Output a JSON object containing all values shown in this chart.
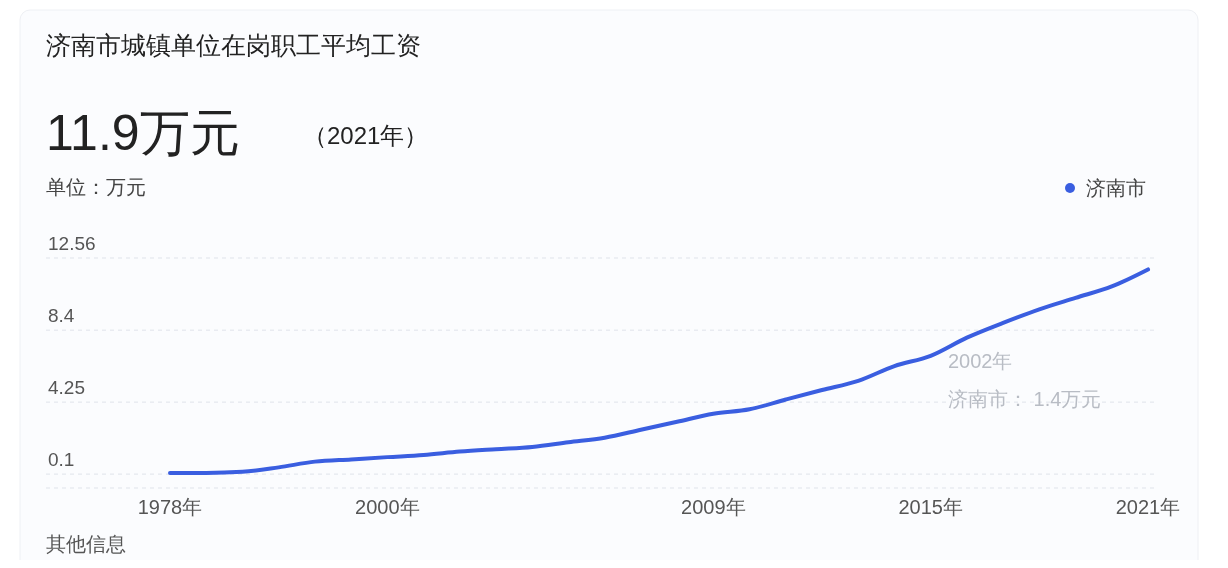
{
  "chart_data": {
    "type": "line",
    "title": "济南市城镇单位在岗职工平均工资",
    "subtitle": "11.9万元",
    "ylabel": "单位：万元",
    "annotations": [
      "（2021年）",
      "2002年",
      "济南市： 1.4万元",
      "其他信息"
    ],
    "categories": [
      "1978年",
      null,
      null,
      null,
      null,
      null,
      "2000年",
      null,
      null,
      null,
      null,
      null,
      null,
      null,
      null,
      "2009年",
      null,
      null,
      null,
      null,
      null,
      "2015年",
      null,
      null,
      null,
      null,
      null,
      "2021年"
    ],
    "series": [
      {
        "name": "济南市",
        "color": "#3a5ee0",
        "values": [
          0.17,
          0.17,
          0.23,
          0.49,
          0.82,
          0.95,
          1.08,
          1.2,
          1.4,
          1.54,
          1.67,
          1.94,
          2.2,
          2.66,
          3.12,
          3.58,
          3.84,
          4.4,
          4.95,
          5.48,
          6.33,
          6.92,
          7.97,
          8.82,
          9.6,
          10.26,
          10.92,
          11.9
        ]
      }
    ],
    "ylim": [
      -0.7,
      12.56
    ],
    "yticks": [
      0.1,
      4.25,
      8.4,
      12.56
    ],
    "grid": "y",
    "legend": "top right",
    "marker": "none",
    "line_style": "solid"
  }
}
